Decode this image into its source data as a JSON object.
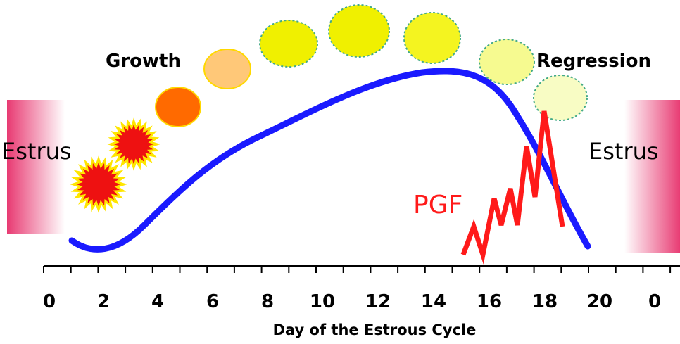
{
  "diagram": {
    "labels": {
      "growth": "Growth",
      "regression": "Regression",
      "estrus_left": "Estrus",
      "estrus_right": "Estrus",
      "pgf": "PGF",
      "axis_title": "Day of the Estrous Cycle"
    },
    "tick_labels": [
      "0",
      "2",
      "4",
      "6",
      "8",
      "10",
      "12",
      "14",
      "16",
      "18",
      "20",
      "0"
    ],
    "colors": {
      "curve": "#1a1aff",
      "pgf": "#ff1a1a",
      "estrus_band": "#e8306a",
      "follicle_red": "#ee1111",
      "follicle_orange": "#ff6a00",
      "follicle_tan": "#ffc878",
      "follicle_yellow": "#f0f000",
      "follicle_pale": "#f8fcb8",
      "axis": "#000000"
    }
  }
}
